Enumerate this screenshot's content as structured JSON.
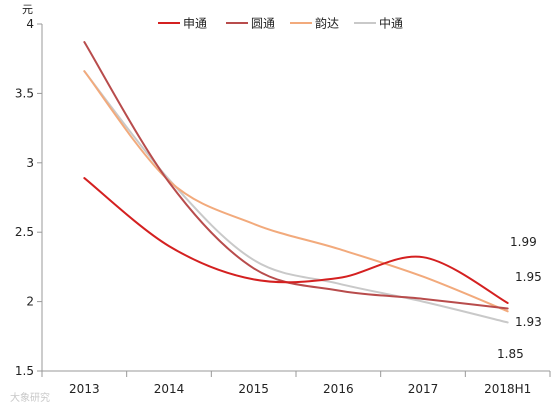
{
  "chart_data": {
    "type": "line",
    "unit_label": "元",
    "categories": [
      "2013",
      "2014",
      "2015",
      "2016",
      "2017",
      "2018H1"
    ],
    "ylim": [
      1.5,
      4
    ],
    "yticks": [
      "1.5",
      "2",
      "2.5",
      "3",
      "3.5",
      "4"
    ],
    "series": [
      {
        "name": "申通",
        "color": "#d42020",
        "values": [
          2.89,
          2.4,
          2.16,
          2.17,
          2.32,
          1.99
        ]
      },
      {
        "name": "圆通",
        "color": "#b84c4c",
        "values": [
          3.87,
          2.86,
          2.24,
          2.08,
          2.02,
          1.95
        ]
      },
      {
        "name": "韵达",
        "color": "#f2aa7c",
        "values": [
          3.66,
          2.87,
          2.56,
          2.38,
          2.18,
          1.93
        ]
      },
      {
        "name": "中通",
        "color": "#c9c9c9",
        "values": [
          3.66,
          2.88,
          2.3,
          2.13,
          2.0,
          1.85
        ]
      }
    ],
    "end_labels": [
      "1.99",
      "1.95",
      "1.93",
      "1.85"
    ],
    "legend_position": "top",
    "grid": false
  },
  "watermark": "大象研究"
}
